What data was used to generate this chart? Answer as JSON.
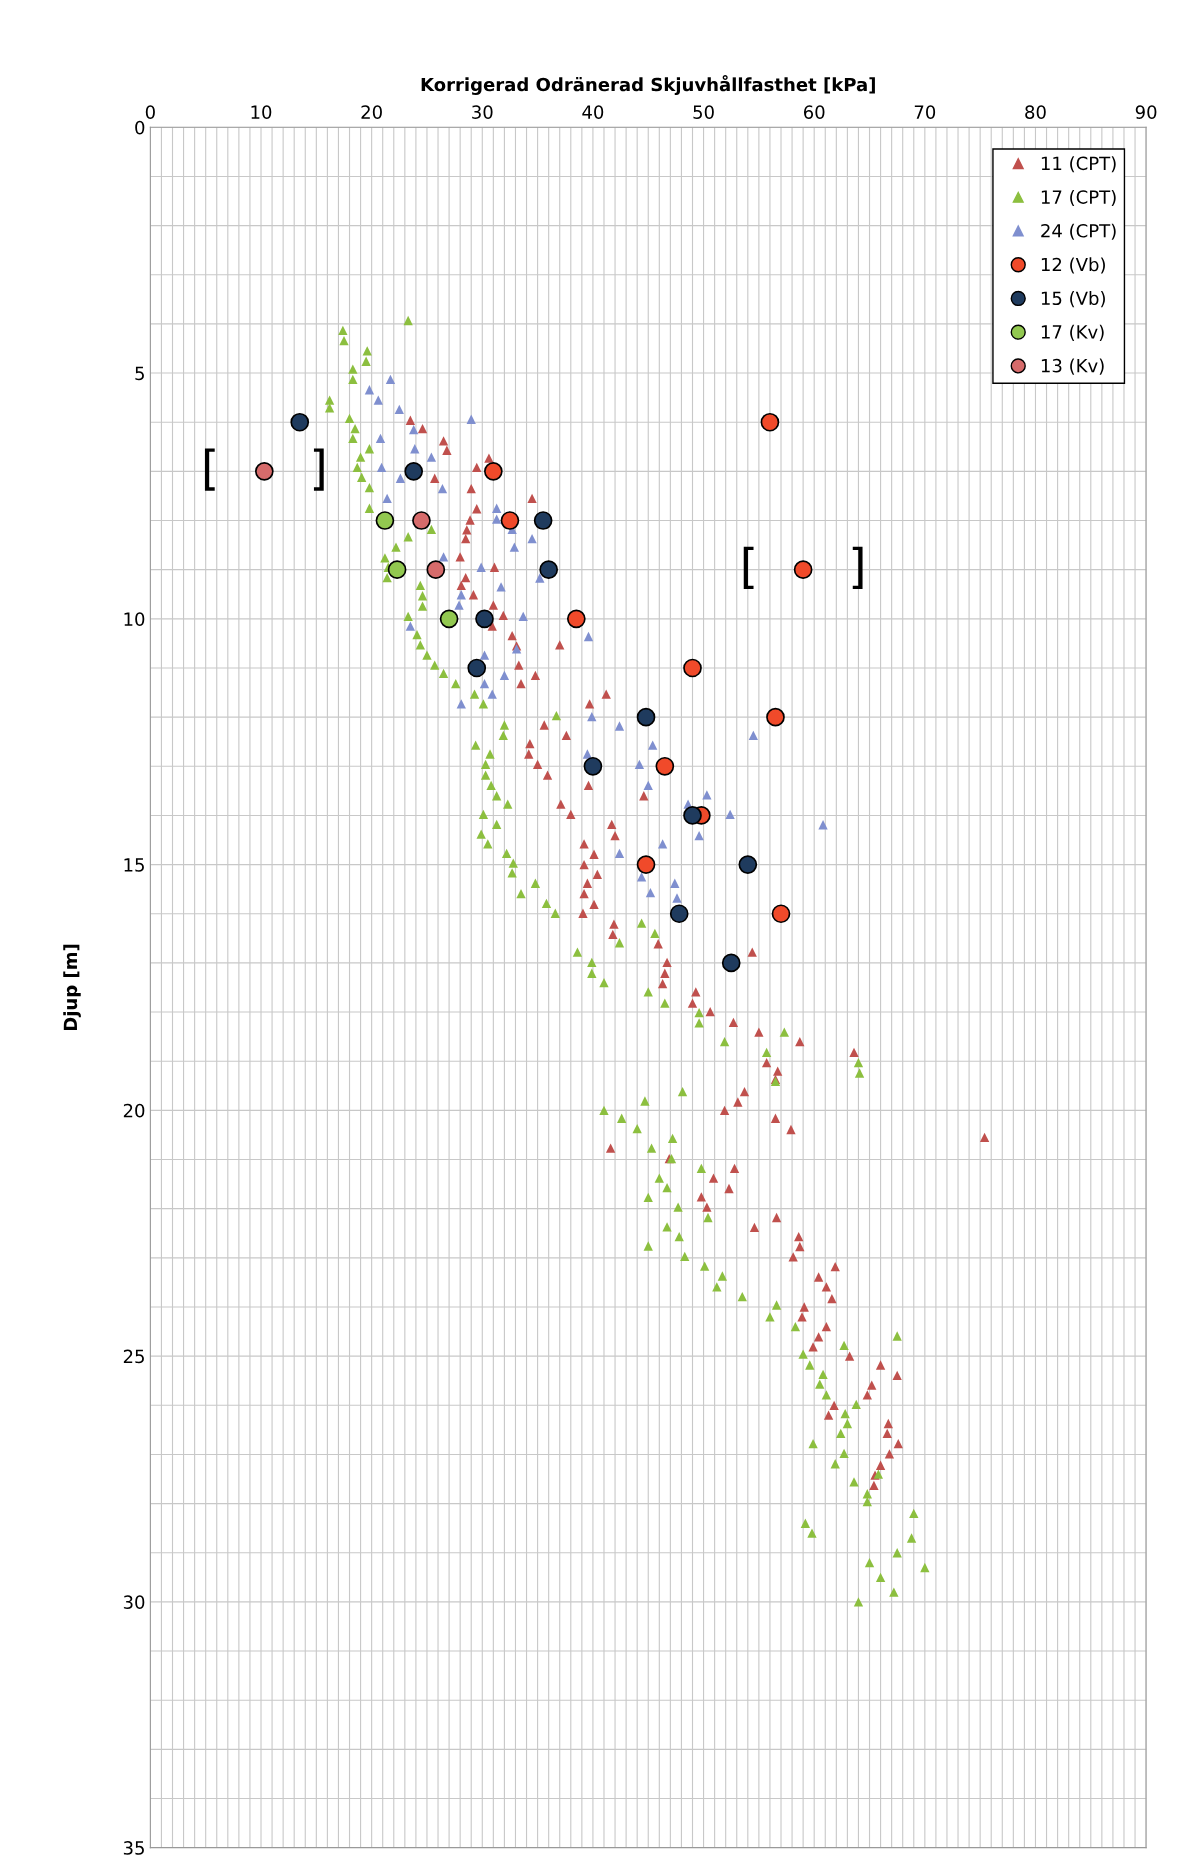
{
  "chart_data": {
    "type": "scatter",
    "xlabel": "Korrigerad Odränerad Skjuvhållfasthet [kPa]",
    "ylabel": "Djup [m]",
    "xlim": [
      0,
      90
    ],
    "ylim": [
      35,
      0
    ],
    "xticks": [
      0,
      {
        "value": 1,
        "label": null
      },
      {
        "value": 2,
        "label": null
      },
      {
        "value": 3,
        "label": null
      },
      {
        "value": 4,
        "label": null
      },
      {
        "value": 5,
        "label": null
      },
      {
        "value": 6,
        "label": null
      },
      {
        "value": 7,
        "label": null
      },
      {
        "value": 8,
        "label": null
      },
      {
        "value": 9,
        "label": null
      },
      10,
      {
        "value": 11,
        "label": null
      },
      {
        "value": 12,
        "label": null
      },
      {
        "value": 13,
        "label": null
      },
      {
        "value": 14,
        "label": null
      },
      {
        "value": 15,
        "label": null
      },
      {
        "value": 16,
        "label": null
      },
      {
        "value": 17,
        "label": null
      },
      {
        "value": 18,
        "label": null
      },
      {
        "value": 19,
        "label": null
      },
      20,
      {
        "value": 21,
        "label": null
      },
      {
        "value": 22,
        "label": null
      },
      {
        "value": 23,
        "label": null
      },
      {
        "value": 24,
        "label": null
      },
      {
        "value": 25,
        "label": null
      },
      {
        "value": 26,
        "label": null
      },
      {
        "value": 27,
        "label": null
      },
      {
        "value": 28,
        "label": null
      },
      {
        "value": 29,
        "label": null
      },
      30,
      {
        "value": 31,
        "label": null
      },
      {
        "value": 32,
        "label": null
      },
      {
        "value": 33,
        "label": null
      },
      {
        "value": 34,
        "label": null
      },
      {
        "value": 35,
        "label": null
      },
      {
        "value": 36,
        "label": null
      },
      {
        "value": 37,
        "label": null
      },
      {
        "value": 38,
        "label": null
      },
      {
        "value": 39,
        "label": null
      },
      40,
      {
        "value": 41,
        "label": null
      },
      {
        "value": 42,
        "label": null
      },
      {
        "value": 43,
        "label": null
      },
      {
        "value": 44,
        "label": null
      },
      {
        "value": 45,
        "label": null
      },
      {
        "value": 46,
        "label": null
      },
      {
        "value": 47,
        "label": null
      },
      {
        "value": 48,
        "label": null
      },
      {
        "value": 49,
        "label": null
      },
      50,
      {
        "value": 51,
        "label": null
      },
      {
        "value": 52,
        "label": null
      },
      {
        "value": 53,
        "label": null
      },
      {
        "value": 54,
        "label": null
      },
      {
        "value": 55,
        "label": null
      },
      {
        "value": 56,
        "label": null
      },
      {
        "value": 57,
        "label": null
      },
      {
        "value": 58,
        "label": null
      },
      {
        "value": 59,
        "label": null
      },
      60,
      {
        "value": 61,
        "label": null
      },
      {
        "value": 62,
        "label": null
      },
      {
        "value": 63,
        "label": null
      },
      {
        "value": 64,
        "label": null
      },
      {
        "value": 65,
        "label": null
      },
      {
        "value": 66,
        "label": null
      },
      {
        "value": 67,
        "label": null
      },
      {
        "value": 68,
        "label": null
      },
      {
        "value": 69,
        "label": null
      },
      70,
      {
        "value": 71,
        "label": null
      },
      {
        "value": 72,
        "label": null
      },
      {
        "value": 73,
        "label": null
      },
      {
        "value": 74,
        "label": null
      },
      {
        "value": 75,
        "label": null
      },
      {
        "value": 76,
        "label": null
      },
      {
        "value": 77,
        "label": null
      },
      {
        "value": 78,
        "label": null
      },
      {
        "value": 79,
        "label": null
      },
      80,
      {
        "value": 81,
        "label": null
      },
      {
        "value": 82,
        "label": null
      },
      {
        "value": 83,
        "label": null
      },
      {
        "value": 84,
        "label": null
      },
      {
        "value": 85,
        "label": null
      },
      {
        "value": 86,
        "label": null
      },
      {
        "value": 87,
        "label": null
      },
      {
        "value": 88,
        "label": null
      },
      {
        "value": 89,
        "label": null
      },
      90
    ],
    "yticks": [
      0,
      {
        "value": 1,
        "label": null
      },
      {
        "value": 2,
        "label": null
      },
      {
        "value": 3,
        "label": null
      },
      {
        "value": 4,
        "label": null
      },
      5,
      {
        "value": 6,
        "label": null
      },
      {
        "value": 7,
        "label": null
      },
      {
        "value": 8,
        "label": null
      },
      {
        "value": 9,
        "label": null
      },
      10,
      {
        "value": 11,
        "label": null
      },
      {
        "value": 12,
        "label": null
      },
      {
        "value": 13,
        "label": null
      },
      {
        "value": 14,
        "label": null
      },
      15,
      {
        "value": 16,
        "label": null
      },
      {
        "value": 17,
        "label": null
      },
      {
        "value": 18,
        "label": null
      },
      {
        "value": 19,
        "label": null
      },
      20,
      {
        "value": 21,
        "label": null
      },
      {
        "value": 22,
        "label": null
      },
      {
        "value": 23,
        "label": null
      },
      {
        "value": 24,
        "label": null
      },
      25,
      {
        "value": 26,
        "label": null
      },
      {
        "value": 27,
        "label": null
      },
      {
        "value": 28,
        "label": null
      },
      {
        "value": 29,
        "label": null
      },
      30,
      {
        "value": 31,
        "label": null
      },
      {
        "value": 32,
        "label": null
      },
      {
        "value": 33,
        "label": null
      },
      {
        "value": 34,
        "label": null
      },
      35
    ],
    "grid": true,
    "legend": "top right",
    "series": [
      {
        "name": "11 (CPT)",
        "color": "#c0504d",
        "marker": "triangle",
        "x": [
          23.5,
          24.6,
          26.5,
          26.8,
          30.6,
          29.5,
          25.7,
          29.0,
          34.5,
          29.5,
          28.9,
          28.6,
          28.5,
          28.0,
          31.1,
          28.5,
          28.1,
          29.2,
          31.0,
          31.9,
          30.9,
          32.7,
          33.1,
          33.3,
          34.8,
          33.5,
          37.0,
          41.2,
          39.7,
          35.6,
          37.6,
          34.3,
          34.2,
          35.0,
          35.9,
          39.6,
          44.6,
          37.1,
          38.0,
          41.7,
          42.0,
          39.2,
          40.1,
          39.2,
          40.4,
          39.5,
          39.2,
          40.1,
          39.1,
          41.9,
          41.8,
          45.9,
          54.4,
          46.7,
          46.5,
          46.3,
          49.3,
          49.0,
          50.6,
          52.7,
          55.0,
          58.7,
          63.6,
          55.7,
          56.7,
          56.5,
          53.7,
          53.1,
          51.9,
          56.5,
          57.9,
          41.6,
          46.9,
          52.8,
          50.9,
          52.3,
          49.8,
          50.3,
          56.6,
          54.6,
          58.6,
          58.7,
          58.1,
          61.9,
          60.4,
          61.1,
          61.6,
          59.1,
          58.9,
          61.1,
          60.4,
          59.9,
          63.2,
          66.0,
          67.5,
          65.2,
          64.8,
          61.8,
          61.3,
          66.7,
          66.6,
          67.6,
          66.8,
          66.0,
          65.5,
          65.4,
          75.4
        ],
        "values": [
          5.96,
          6.13,
          6.38,
          6.57,
          6.73,
          6.92,
          7.14,
          7.35,
          7.55,
          7.76,
          7.99,
          8.19,
          8.37,
          8.74,
          8.95,
          9.16,
          9.32,
          9.51,
          9.72,
          9.93,
          10.15,
          10.34,
          10.55,
          10.94,
          11.15,
          11.32,
          10.53,
          11.53,
          11.73,
          12.16,
          12.37,
          12.54,
          12.75,
          12.96,
          13.18,
          13.39,
          13.6,
          13.77,
          13.98,
          14.18,
          14.41,
          14.58,
          14.79,
          15.0,
          15.2,
          15.38,
          15.59,
          15.81,
          15.99,
          16.21,
          16.42,
          16.61,
          16.78,
          16.99,
          17.21,
          17.42,
          17.59,
          17.82,
          17.99,
          18.21,
          18.41,
          18.6,
          18.82,
          19.03,
          19.2,
          19.37,
          19.62,
          19.83,
          20.0,
          20.16,
          20.39,
          20.77,
          20.98,
          21.18,
          21.38,
          21.59,
          21.76,
          21.97,
          22.18,
          22.38,
          22.57,
          22.77,
          22.98,
          23.18,
          23.39,
          23.59,
          23.83,
          24.0,
          24.2,
          24.4,
          24.61,
          24.81,
          25.0,
          25.18,
          25.39,
          25.59,
          25.79,
          26.0,
          26.2,
          26.37,
          26.57,
          26.78,
          26.99,
          27.22,
          27.42,
          27.63,
          20.55
        ]
      },
      {
        "name": "17 (CPT)",
        "color": "#8cbf3f",
        "marker": "triangle",
        "x": [
          23.3,
          17.4,
          17.5,
          19.6,
          19.5,
          18.3,
          18.3,
          16.2,
          16.2,
          18.0,
          18.5,
          18.3,
          19.8,
          19.0,
          18.7,
          19.1,
          19.8,
          19.8,
          25.4,
          23.3,
          22.2,
          21.2,
          21.5,
          21.4,
          24.4,
          24.6,
          24.6,
          23.3,
          24.1,
          24.4,
          25.0,
          25.7,
          26.5,
          27.6,
          29.3,
          30.1,
          32.0,
          31.9,
          29.4,
          30.7,
          30.3,
          30.3,
          30.8,
          31.3,
          32.3,
          30.1,
          31.3,
          29.9,
          30.5,
          32.2,
          32.8,
          32.7,
          34.8,
          33.5,
          35.8,
          36.6,
          36.7,
          44.4,
          45.6,
          42.4,
          38.6,
          39.9,
          39.9,
          41.0,
          45.0,
          46.5,
          49.6,
          49.6,
          51.9,
          57.3,
          55.7,
          56.5,
          64.0,
          64.1,
          48.1,
          44.7,
          41.0,
          42.6,
          44.0,
          45.3,
          47.2,
          47.1,
          46.0,
          46.7,
          45.0,
          47.7,
          49.8,
          50.4,
          46.7,
          47.8,
          45.0,
          48.3,
          50.1,
          51.7,
          51.2,
          53.5,
          56.6,
          56.0,
          58.3,
          67.5,
          62.7,
          59.0,
          59.6,
          60.8,
          60.5,
          61.1,
          63.8,
          62.8,
          63.0,
          62.4,
          59.9,
          62.7,
          61.9,
          63.6,
          65.8,
          64.8,
          64.8,
          59.2,
          59.8,
          69.0,
          68.8,
          67.5,
          70.0,
          65.0,
          66.0,
          67.2,
          64.0
        ],
        "values": [
          3.93,
          4.13,
          4.34,
          4.55,
          4.76,
          4.92,
          5.13,
          5.55,
          5.71,
          5.92,
          6.13,
          6.33,
          6.54,
          6.71,
          6.92,
          7.12,
          7.33,
          7.75,
          8.18,
          8.33,
          8.54,
          8.76,
          8.95,
          9.16,
          9.32,
          9.53,
          9.74,
          9.95,
          10.32,
          10.53,
          10.74,
          10.94,
          11.11,
          11.32,
          11.53,
          11.73,
          12.16,
          12.37,
          12.57,
          12.75,
          12.96,
          13.18,
          13.39,
          13.6,
          13.77,
          13.98,
          14.18,
          14.38,
          14.58,
          14.77,
          14.97,
          15.17,
          15.38,
          15.59,
          15.79,
          15.99,
          11.97,
          16.19,
          16.4,
          16.59,
          16.78,
          16.99,
          17.21,
          17.4,
          17.59,
          17.82,
          18.01,
          18.22,
          18.6,
          18.41,
          18.82,
          19.41,
          19.03,
          19.24,
          19.62,
          19.81,
          20.0,
          20.16,
          20.37,
          20.77,
          20.57,
          20.98,
          21.38,
          21.57,
          21.77,
          21.97,
          21.18,
          22.18,
          22.37,
          22.57,
          22.76,
          22.97,
          23.17,
          23.37,
          23.59,
          23.79,
          23.96,
          24.2,
          24.4,
          24.59,
          24.78,
          24.96,
          25.18,
          25.37,
          25.57,
          25.79,
          25.98,
          26.17,
          26.37,
          26.57,
          26.78,
          26.98,
          27.19,
          27.56,
          27.4,
          27.8,
          27.96,
          28.4,
          28.6,
          28.2,
          28.7,
          29.0,
          29.3,
          29.2,
          29.5,
          29.8,
          30.0
        ]
      },
      {
        "name": "24 (CPT)",
        "color": "#7f8fcf",
        "marker": "triangle",
        "x": [
          21.7,
          19.8,
          20.6,
          22.5,
          29.0,
          23.8,
          20.8,
          23.9,
          25.4,
          20.9,
          22.6,
          26.4,
          21.4,
          31.3,
          31.3,
          32.7,
          34.5,
          32.9,
          26.5,
          29.9,
          35.2,
          31.7,
          28.1,
          27.9,
          33.7,
          23.5,
          39.6,
          30.2,
          33.1,
          32.0,
          30.2,
          30.9,
          28.1,
          39.9,
          42.4,
          45.4,
          39.5,
          44.2,
          45.0,
          48.6,
          50.3,
          52.4,
          49.6,
          54.5,
          60.8,
          46.3,
          42.4,
          44.4,
          47.4,
          45.2,
          47.6
        ],
        "values": [
          5.13,
          5.34,
          5.55,
          5.74,
          5.94,
          6.15,
          6.33,
          6.54,
          6.71,
          6.92,
          7.14,
          7.35,
          7.55,
          7.75,
          7.97,
          8.18,
          8.37,
          8.54,
          8.74,
          8.95,
          9.17,
          9.35,
          9.51,
          9.72,
          9.95,
          10.15,
          10.36,
          10.74,
          10.61,
          11.15,
          11.32,
          11.53,
          11.73,
          11.99,
          12.18,
          12.57,
          12.75,
          12.96,
          13.39,
          13.77,
          13.58,
          13.98,
          14.41,
          12.37,
          14.19,
          14.58,
          14.77,
          15.25,
          15.38,
          15.57,
          15.68
        ]
      },
      {
        "name": "12 (Vb)",
        "color": "#f04a2a",
        "marker": "circle",
        "x": [
          56,
          31,
          32.5,
          59,
          38.5,
          49,
          56.5,
          46.5,
          49.8,
          44.8,
          57
        ],
        "values": [
          6,
          7,
          8,
          9,
          10,
          11,
          12,
          13,
          14,
          15,
          16
        ]
      },
      {
        "name": "15 (Vb)",
        "color": "#1f3b5e",
        "marker": "circle",
        "x": [
          13.5,
          23.8,
          35.5,
          36,
          30.2,
          29.5,
          44.8,
          40,
          49,
          54,
          47.8,
          52.5
        ],
        "values": [
          6,
          7,
          8,
          9,
          10,
          11,
          12,
          13,
          14,
          15,
          16,
          17
        ]
      },
      {
        "name": "17 (Kv)",
        "color": "#92c850",
        "marker": "circle",
        "x": [
          21.2,
          22.3,
          27
        ],
        "values": [
          8,
          9,
          10
        ]
      },
      {
        "name": "13 (Kv)",
        "color": "#d66b6b",
        "marker": "circle",
        "x": [
          10.3,
          24.5,
          25.8
        ],
        "values": [
          7,
          8,
          9
        ]
      }
    ],
    "annotations": [
      {
        "text": "[      ]",
        "x": 10.3,
        "y": 7
      },
      {
        "text": "[      ]",
        "x": 59,
        "y": 9
      }
    ]
  }
}
